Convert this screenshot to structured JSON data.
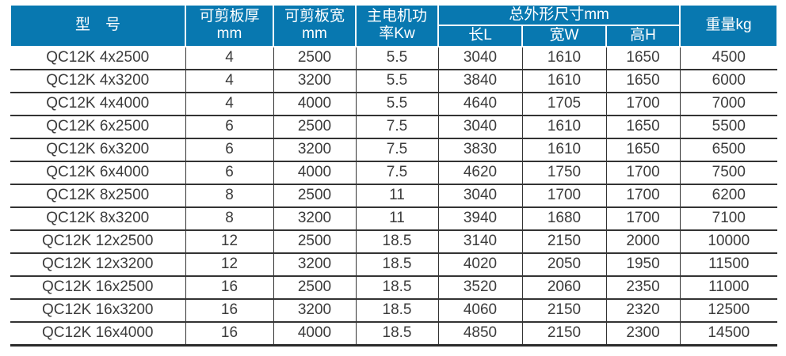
{
  "colors": {
    "header_bg": "#0878B0",
    "body_text": "#3C3C3C",
    "grid_line": "#333333"
  },
  "table": {
    "headers": {
      "model": "型　号",
      "thickness": "可剪板厚\nmm",
      "plate_width": "可剪板宽\nmm",
      "motor_power": "主电机功\n率Kw",
      "dimensions_group": "总外形尺寸mm",
      "length": "长L",
      "width": "宽W",
      "height": "高H",
      "weight": "重量kg"
    },
    "rows": [
      [
        "QC12K 4x2500",
        "4",
        "2500",
        "5.5",
        "3040",
        "1610",
        "1650",
        "4500"
      ],
      [
        "QC12K 4x3200",
        "4",
        "3200",
        "5.5",
        "3840",
        "1610",
        "1650",
        "6000"
      ],
      [
        "QC12K 4x4000",
        "4",
        "4000",
        "5.5",
        "4640",
        "1705",
        "1700",
        "7000"
      ],
      [
        "QC12K 6x2500",
        "6",
        "2500",
        "7.5",
        "3040",
        "1610",
        "1650",
        "5500"
      ],
      [
        "QC12K 6x3200",
        "6",
        "3200",
        "7.5",
        "3830",
        "1610",
        "1650",
        "6500"
      ],
      [
        "QC12K 6x4000",
        "6",
        "4000",
        "7.5",
        "4620",
        "1750",
        "1700",
        "7500"
      ],
      [
        "QC12K 8x2500",
        "8",
        "2500",
        "11",
        "3040",
        "1700",
        "1700",
        "6200"
      ],
      [
        "QC12K 8x3200",
        "8",
        "3200",
        "11",
        "3940",
        "1680",
        "1700",
        "7100"
      ],
      [
        "QC12K 12x2500",
        "12",
        "2500",
        "18.5",
        "3140",
        "2150",
        "2000",
        "10000"
      ],
      [
        "QC12K 12x3200",
        "12",
        "3200",
        "18.5",
        "4020",
        "2050",
        "1950",
        "11500"
      ],
      [
        "QC12K 16x2500",
        "16",
        "2500",
        "18.5",
        "3520",
        "2060",
        "2350",
        "11000"
      ],
      [
        "QC12K 16x3200",
        "16",
        "3200",
        "18.5",
        "4060",
        "2150",
        "2320",
        "12500"
      ],
      [
        "QC12K 16x4000",
        "16",
        "4000",
        "18.5",
        "4850",
        "2150",
        "2300",
        "14500"
      ]
    ]
  }
}
